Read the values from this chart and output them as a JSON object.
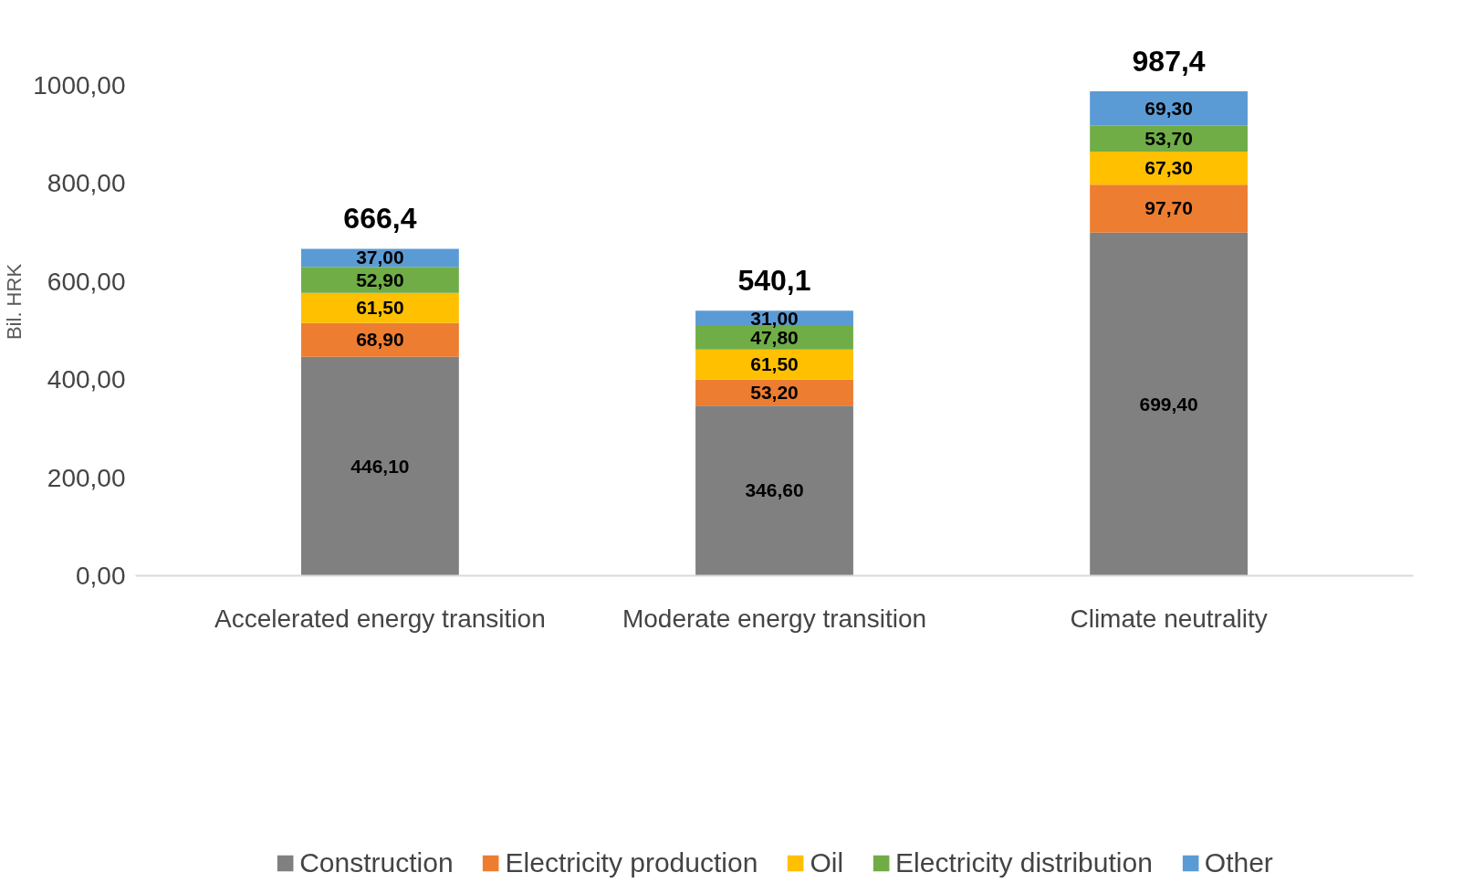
{
  "chart_data": {
    "type": "bar",
    "stacked": true,
    "ylabel": "Bil. HRK",
    "categories": [
      "Accelerated energy transition",
      "Moderate energy transition",
      "Climate neutrality"
    ],
    "series": [
      {
        "name": "Construction",
        "color": "#808080",
        "values": [
          446.1,
          346.6,
          699.4
        ],
        "value_labels": [
          "446,10",
          "346,60",
          "699,40"
        ]
      },
      {
        "name": "Electricity production",
        "color": "#ed7d31",
        "values": [
          68.9,
          53.2,
          97.7
        ],
        "value_labels": [
          "68,90",
          "53,20",
          "97,70"
        ]
      },
      {
        "name": "Oil",
        "color": "#ffc000",
        "values": [
          61.5,
          61.5,
          67.3
        ],
        "value_labels": [
          "61,50",
          "61,50",
          "67,30"
        ]
      },
      {
        "name": "Electricity distribution",
        "color": "#70ad47",
        "values": [
          52.9,
          47.8,
          53.7
        ],
        "value_labels": [
          "52,90",
          "47,80",
          "53,70"
        ]
      },
      {
        "name": "Other",
        "color": "#5b9bd5",
        "values": [
          37.0,
          31.0,
          69.3
        ],
        "value_labels": [
          "37,00",
          "31,00",
          "69,30"
        ]
      }
    ],
    "totals": [
      "666,4",
      "540,1",
      "987,4"
    ],
    "ylim": [
      0,
      1000
    ],
    "yticks": [
      {
        "value": 0,
        "label": "0,00"
      },
      {
        "value": 200,
        "label": "200,00"
      },
      {
        "value": 400,
        "label": "400,00"
      },
      {
        "value": 600,
        "label": "600,00"
      },
      {
        "value": 800,
        "label": "800,00"
      },
      {
        "value": 1000,
        "label": "1000,00"
      }
    ],
    "grid": false,
    "legend": "bottom"
  }
}
